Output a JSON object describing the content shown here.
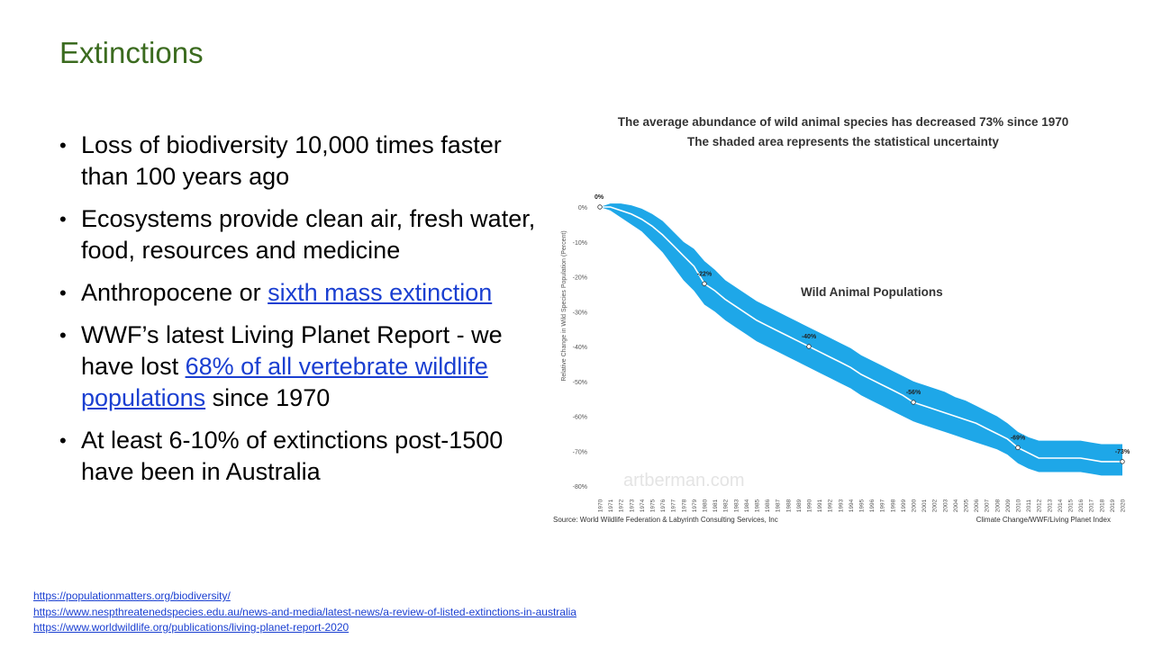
{
  "slide": {
    "title": "Extinctions",
    "bullets": [
      {
        "parts": [
          {
            "text": "Loss of biodiversity 10,000 times faster than 100 years ago",
            "link": false
          }
        ]
      },
      {
        "parts": [
          {
            "text": "Ecosystems provide clean air, fresh water, food, resources and medicine",
            "link": false
          }
        ]
      },
      {
        "parts": [
          {
            "text": "Anthropocene or ",
            "link": false
          },
          {
            "text": "sixth mass extinction",
            "link": true
          }
        ]
      },
      {
        "parts": [
          {
            "text": "WWF’s latest Living Planet Report - we have lost ",
            "link": false
          },
          {
            "text": "68% of all vertebrate wildlife populations",
            "link": true
          },
          {
            "text": " since 1970",
            "link": false
          }
        ]
      },
      {
        "parts": [
          {
            "text": "At least 6-10% of extinctions post-1500 have been in Australia",
            "link": false
          }
        ]
      }
    ],
    "references": [
      "https://populationmatters.org/biodiversity/",
      "https://www.nespthreatenedspecies.edu.au/news-and-media/latest-news/a-review-of-listed-extinctions-in-australia",
      "https://www.worldwildlife.org/publications/living-planet-report-2020"
    ]
  },
  "chart_data": {
    "type": "area",
    "title": "The average abundance of wild animal species has decreased 73% since 1970",
    "subtitle": "The shaded area represents the statistical uncertainty",
    "series_label": "Wild Animal Populations",
    "ylabel": "Relative Change in Wild Species Population (Percent)",
    "xlabel": "",
    "ylim": [
      -80,
      0
    ],
    "yticks": [
      "0%",
      "-10%",
      "-20%",
      "-30%",
      "-40%",
      "-50%",
      "-60%",
      "-70%",
      "-80%"
    ],
    "x": [
      1970,
      1971,
      1972,
      1973,
      1974,
      1975,
      1976,
      1977,
      1978,
      1979,
      1980,
      1981,
      1982,
      1983,
      1984,
      1985,
      1986,
      1987,
      1988,
      1989,
      1990,
      1991,
      1992,
      1993,
      1994,
      1995,
      1996,
      1997,
      1998,
      1999,
      2000,
      2001,
      2002,
      2003,
      2004,
      2005,
      2006,
      2007,
      2008,
      2009,
      2010,
      2011,
      2012,
      2013,
      2014,
      2015,
      2016,
      2017,
      2018,
      2019,
      2020
    ],
    "y": [
      0,
      0,
      -1,
      -2,
      -3.5,
      -5.5,
      -8,
      -11,
      -14,
      -17,
      -22,
      -24,
      -26.5,
      -28.5,
      -30.5,
      -32.5,
      -34,
      -35.5,
      -37,
      -38.5,
      -40,
      -41.5,
      -43,
      -44.5,
      -46,
      -48,
      -49.5,
      -51,
      -52.5,
      -54,
      -56,
      -57,
      -58,
      -59,
      -60,
      -61,
      -62,
      -63.5,
      -65,
      -66.5,
      -69,
      -70.5,
      -72,
      -72,
      -72,
      -72,
      -72,
      -72.5,
      -73,
      -73,
      -73
    ],
    "lower": [
      0,
      -1,
      -3,
      -5,
      -7,
      -10,
      -13,
      -17,
      -21,
      -24,
      -28,
      -30,
      -32.5,
      -34.5,
      -36.5,
      -38.5,
      -40,
      -41.5,
      -43,
      -44.5,
      -46,
      -47.5,
      -49,
      -50.5,
      -52,
      -54,
      -55.5,
      -57,
      -58.5,
      -60,
      -61.5,
      -62.5,
      -63.5,
      -64.5,
      -65.5,
      -66.5,
      -67.5,
      -68.5,
      -69.5,
      -71,
      -73.5,
      -75,
      -76,
      -76,
      -76,
      -76,
      -76,
      -76.5,
      -77,
      -77,
      -77
    ],
    "upper": [
      0,
      1,
      1,
      0.5,
      -0.5,
      -2,
      -4,
      -7,
      -10,
      -12,
      -15.5,
      -18,
      -21,
      -23,
      -25,
      -27,
      -28.5,
      -30,
      -31.5,
      -33,
      -34.5,
      -36,
      -37.5,
      -39,
      -40.5,
      -42.5,
      -44,
      -45.5,
      -47,
      -48.5,
      -50,
      -51,
      -52,
      -53,
      -54.5,
      -55.5,
      -57,
      -58.5,
      -60,
      -62,
      -64.5,
      -66,
      -67,
      -67,
      -67,
      -67,
      -67,
      -67.5,
      -68,
      -68,
      -68
    ],
    "annotations": [
      {
        "year": 1970,
        "value": 0,
        "label": "0%"
      },
      {
        "year": 1980,
        "value": -22,
        "label": "-22%"
      },
      {
        "year": 1990,
        "value": -40,
        "label": "-40%"
      },
      {
        "year": 2000,
        "value": -56,
        "label": "-56%"
      },
      {
        "year": 2010,
        "value": -69,
        "label": "-69%"
      },
      {
        "year": 2020,
        "value": -73,
        "label": "-73%"
      }
    ],
    "watermark": "artberman.com",
    "source": "Source: World Wildlife Federation & Labyrinth Consulting Services, Inc",
    "credit": "Climate Change/WWF/Living Planet Index",
    "colors": {
      "band": "#1ea7e8",
      "line": "#ffffff",
      "marker": "#ffffff"
    },
    "grid": false,
    "legend": "none"
  }
}
